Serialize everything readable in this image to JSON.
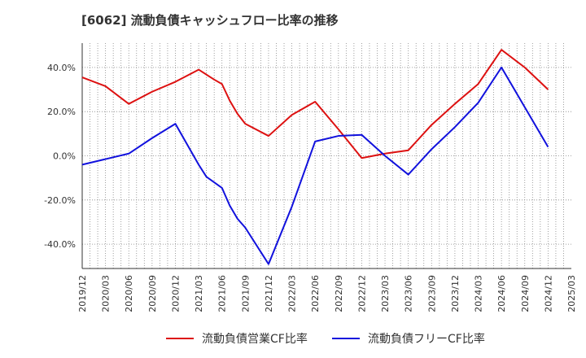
{
  "chart_data": {
    "type": "line",
    "title": "[6062]  流動負債キャッシュフロー比率の推移",
    "x": [
      "2019/12",
      "2020/03",
      "2020/06",
      "2020/09",
      "2020/12",
      "2021/03",
      "2021/06",
      "2021/09",
      "2021/12",
      "2022/03",
      "2022/06",
      "2022/09",
      "2022/12",
      "2023/03",
      "2023/06",
      "2023/09",
      "2023/12",
      "2024/03",
      "2024/06",
      "2024/09",
      "2024/12",
      "2025/03"
    ],
    "xlim": [
      "2019/12",
      "2025/03"
    ],
    "ylim": [
      -51,
      51
    ],
    "yticks": [
      -40,
      -20,
      0,
      20,
      40
    ],
    "ytick_labels": [
      "-40.0%",
      "-20.0%",
      "0.0%",
      "20.0%",
      "40.0%"
    ],
    "grid": true,
    "legend_position": "bottom",
    "series": [
      {
        "name": "流動負債営業CF比率",
        "color": "#dd1111",
        "points": [
          [
            "2019/12",
            35.5
          ],
          [
            "2020/03",
            31.5
          ],
          [
            "2020/06",
            23.5
          ],
          [
            "2020/09",
            29
          ],
          [
            "2020/12",
            33.5
          ],
          [
            "2021/03",
            39
          ],
          [
            "2021/05",
            34.5
          ],
          [
            "2021/06",
            32.5
          ],
          [
            "2021/07",
            25
          ],
          [
            "2021/08",
            19
          ],
          [
            "2021/09",
            14.5
          ],
          [
            "2021/12",
            9
          ],
          [
            "2022/03",
            18.5
          ],
          [
            "2022/06",
            24.5
          ],
          [
            "2022/09",
            12
          ],
          [
            "2022/12",
            -1
          ],
          [
            "2023/03",
            1
          ],
          [
            "2023/06",
            2.5
          ],
          [
            "2023/09",
            14
          ],
          [
            "2023/12",
            23.5
          ],
          [
            "2024/03",
            32.5
          ],
          [
            "2024/06",
            48
          ],
          [
            "2024/09",
            40
          ],
          [
            "2024/12",
            30
          ]
        ]
      },
      {
        "name": "流動負債フリーCF比率",
        "color": "#1111dd",
        "points": [
          [
            "2019/12",
            -4
          ],
          [
            "2020/03",
            -1.5
          ],
          [
            "2020/06",
            1
          ],
          [
            "2020/09",
            8
          ],
          [
            "2020/12",
            14.5
          ],
          [
            "2021/03",
            -4
          ],
          [
            "2021/04",
            -9.5
          ],
          [
            "2021/06",
            -14.5
          ],
          [
            "2021/07",
            -22.5
          ],
          [
            "2021/08",
            -28.5
          ],
          [
            "2021/09",
            -32.5
          ],
          [
            "2021/12",
            -49
          ],
          [
            "2022/03",
            -23
          ],
          [
            "2022/06",
            6.5
          ],
          [
            "2022/09",
            9
          ],
          [
            "2022/12",
            9.5
          ],
          [
            "2023/03",
            0
          ],
          [
            "2023/06",
            -8.5
          ],
          [
            "2023/09",
            3
          ],
          [
            "2023/12",
            13
          ],
          [
            "2024/03",
            24
          ],
          [
            "2024/06",
            40
          ],
          [
            "2024/09",
            22
          ],
          [
            "2024/12",
            4
          ]
        ]
      }
    ]
  }
}
